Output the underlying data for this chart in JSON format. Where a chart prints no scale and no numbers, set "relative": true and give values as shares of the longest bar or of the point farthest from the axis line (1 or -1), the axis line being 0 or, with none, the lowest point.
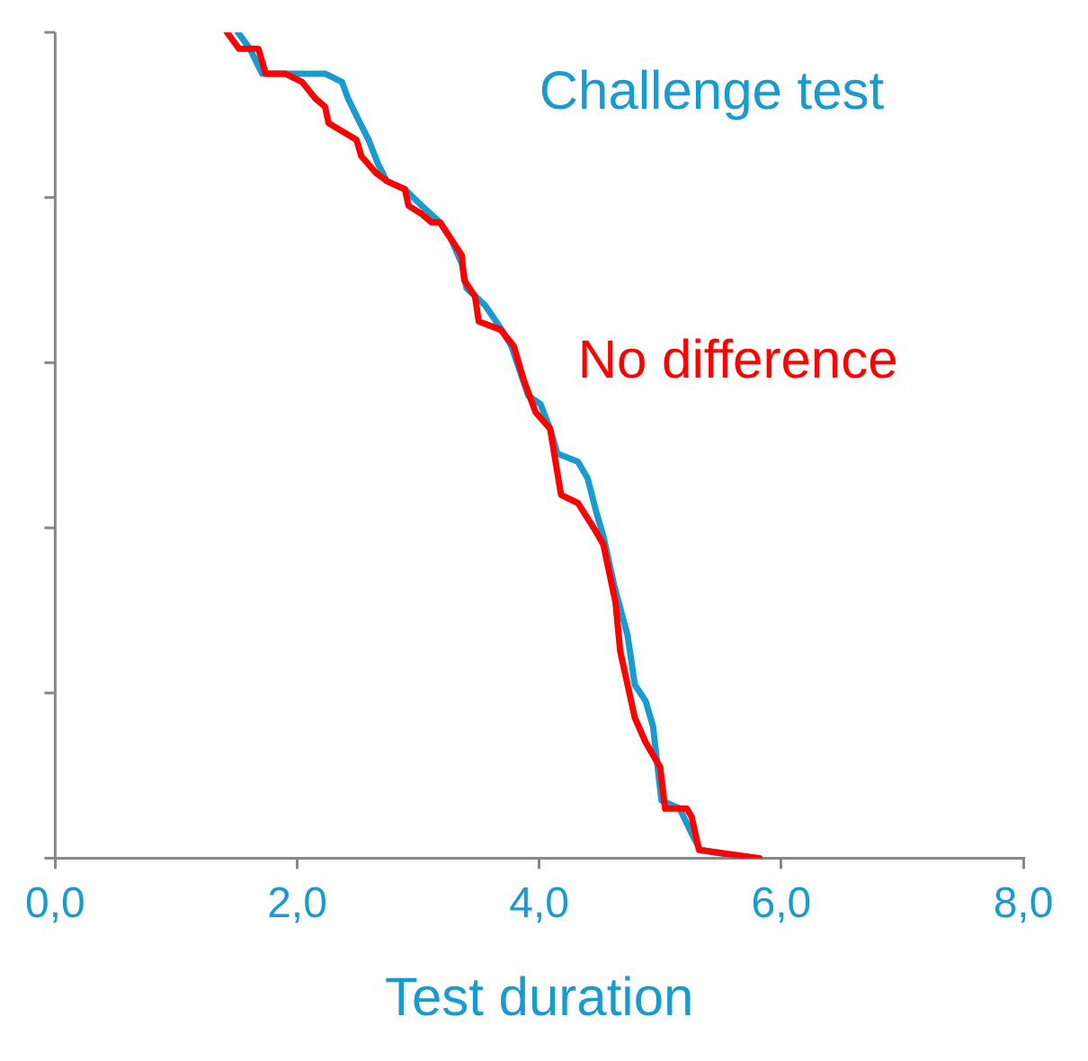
{
  "chart_data": {
    "type": "line",
    "xlabel": "Test duration",
    "relative": true,
    "legend": false,
    "grid": false,
    "marker": "none",
    "line_style": "solid",
    "xlim": [
      0,
      8
    ],
    "xticks": [
      {
        "value": 0,
        "label": "0,0"
      },
      {
        "value": 2,
        "label": "2,0"
      },
      {
        "value": 4,
        "label": "4,0"
      },
      {
        "value": 6,
        "label": "6,0"
      },
      {
        "value": 8,
        "label": "8,0"
      }
    ],
    "series": [
      {
        "name": "No difference",
        "color": "#ff0000",
        "x": [
          1.42,
          1.52,
          1.68,
          1.74,
          1.9,
          2.04,
          2.15,
          2.23,
          2.26,
          2.49,
          2.53,
          2.65,
          2.74,
          2.89,
          2.92,
          3.03,
          3.11,
          3.18,
          3.27,
          3.36,
          3.38,
          3.47,
          3.5,
          3.68,
          3.79,
          3.87,
          3.97,
          4.09,
          4.18,
          4.32,
          4.45,
          4.53,
          4.63,
          4.67,
          4.79,
          4.88,
          5.0,
          5.04,
          5.22,
          5.26,
          5.32,
          5.82
        ],
        "values": [
          1.0,
          0.98,
          0.98,
          0.95,
          0.95,
          0.94,
          0.92,
          0.91,
          0.89,
          0.87,
          0.85,
          0.83,
          0.82,
          0.81,
          0.79,
          0.78,
          0.77,
          0.77,
          0.75,
          0.73,
          0.7,
          0.68,
          0.65,
          0.64,
          0.62,
          0.58,
          0.54,
          0.52,
          0.44,
          0.43,
          0.4,
          0.38,
          0.31,
          0.25,
          0.17,
          0.14,
          0.11,
          0.06,
          0.06,
          0.05,
          0.01,
          0.0
        ]
      },
      {
        "name": "Challenge test",
        "color": "#1a9bd0",
        "x": [
          1.51,
          1.61,
          1.71,
          1.86,
          2.23,
          2.37,
          2.42,
          2.52,
          2.59,
          2.67,
          2.74,
          2.89,
          2.96,
          3.03,
          3.18,
          3.27,
          3.36,
          3.4,
          3.55,
          3.69,
          3.77,
          3.84,
          3.91,
          4.01,
          4.09,
          4.15,
          4.32,
          4.4,
          4.47,
          4.53,
          4.62,
          4.73,
          4.79,
          4.88,
          4.94,
          5.01,
          5.16,
          5.26,
          5.33,
          5.74
        ],
        "values": [
          1.0,
          0.98,
          0.95,
          0.95,
          0.95,
          0.94,
          0.92,
          0.89,
          0.87,
          0.84,
          0.82,
          0.81,
          0.8,
          0.79,
          0.77,
          0.75,
          0.72,
          0.69,
          0.67,
          0.64,
          0.62,
          0.59,
          0.56,
          0.55,
          0.52,
          0.49,
          0.48,
          0.46,
          0.42,
          0.39,
          0.33,
          0.27,
          0.21,
          0.19,
          0.16,
          0.07,
          0.06,
          0.03,
          0.01,
          0.0
        ]
      }
    ]
  }
}
